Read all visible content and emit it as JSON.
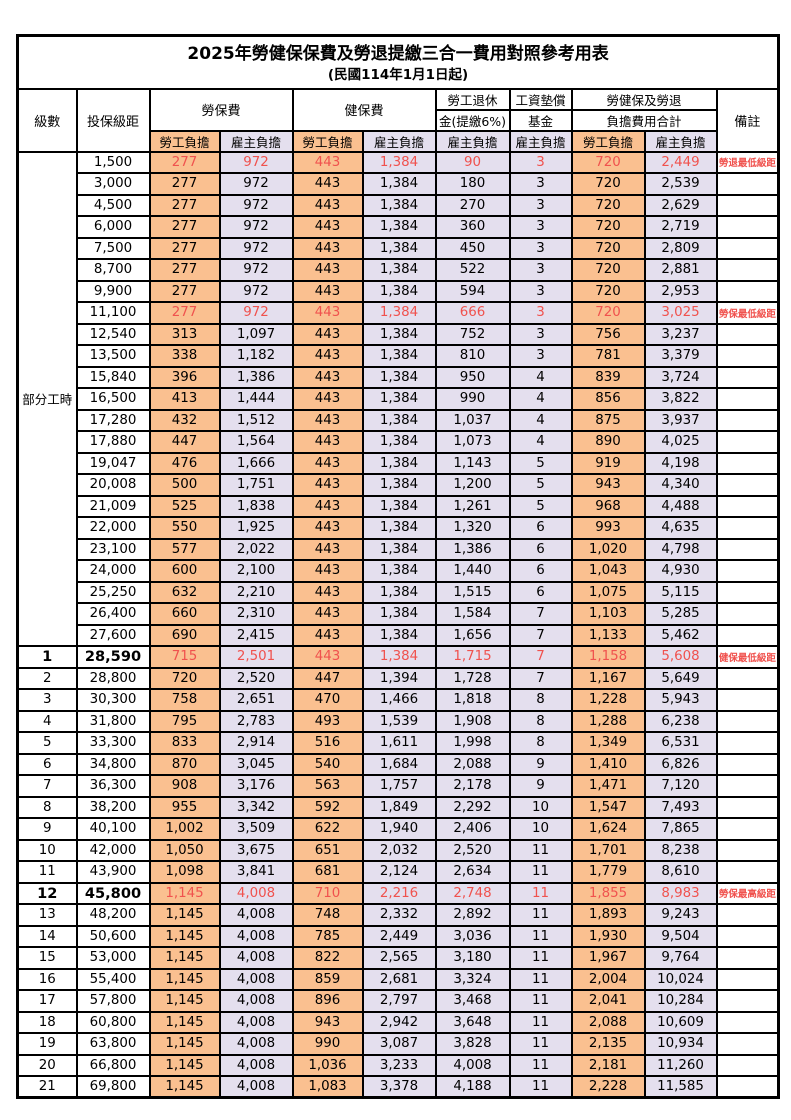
{
  "title": "2025年勞健保保費及勞退提繳三合一費用對照參考用表",
  "subtitle": "(民國114年1月1日起)",
  "header": {
    "level": "級數",
    "bracket": "投保級距",
    "labor_fee": "勞保費",
    "health_fee": "健保費",
    "pension_line1": "勞工退休",
    "pension_line2": "金(提繳6%)",
    "wage_fund_line1": "工資墊償",
    "wage_fund_line2": "基金",
    "total_line1": "勞健保及勞退",
    "total_line2": "負擔費用合計",
    "employee": "勞工負擔",
    "employer": "雇主負擔",
    "remark": "備註"
  },
  "part_time_label": "部分工時",
  "colors": {
    "employee_col_bg": "#fac090",
    "employer_col_bg": "#e4dfee",
    "highlight_text": "#f0524e",
    "grid": "#000000"
  },
  "rows": [
    {
      "level": "",
      "bracket": "1,500",
      "values": [
        "277",
        "972",
        "443",
        "1,384",
        "90",
        "3",
        "720",
        "2,449"
      ],
      "remark": "勞退最低級距",
      "red": true,
      "bold": false
    },
    {
      "level": "",
      "bracket": "3,000",
      "values": [
        "277",
        "972",
        "443",
        "1,384",
        "180",
        "3",
        "720",
        "2,539"
      ],
      "remark": "",
      "red": false,
      "bold": false
    },
    {
      "level": "",
      "bracket": "4,500",
      "values": [
        "277",
        "972",
        "443",
        "1,384",
        "270",
        "3",
        "720",
        "2,629"
      ],
      "remark": "",
      "red": false,
      "bold": false
    },
    {
      "level": "",
      "bracket": "6,000",
      "values": [
        "277",
        "972",
        "443",
        "1,384",
        "360",
        "3",
        "720",
        "2,719"
      ],
      "remark": "",
      "red": false,
      "bold": false
    },
    {
      "level": "",
      "bracket": "7,500",
      "values": [
        "277",
        "972",
        "443",
        "1,384",
        "450",
        "3",
        "720",
        "2,809"
      ],
      "remark": "",
      "red": false,
      "bold": false
    },
    {
      "level": "",
      "bracket": "8,700",
      "values": [
        "277",
        "972",
        "443",
        "1,384",
        "522",
        "3",
        "720",
        "2,881"
      ],
      "remark": "",
      "red": false,
      "bold": false
    },
    {
      "level": "",
      "bracket": "9,900",
      "values": [
        "277",
        "972",
        "443",
        "1,384",
        "594",
        "3",
        "720",
        "2,953"
      ],
      "remark": "",
      "red": false,
      "bold": false
    },
    {
      "level": "",
      "bracket": "11,100",
      "values": [
        "277",
        "972",
        "443",
        "1,384",
        "666",
        "3",
        "720",
        "3,025"
      ],
      "remark": "勞保最低級距",
      "red": true,
      "bold": false
    },
    {
      "level": "",
      "bracket": "12,540",
      "values": [
        "313",
        "1,097",
        "443",
        "1,384",
        "752",
        "3",
        "756",
        "3,237"
      ],
      "remark": "",
      "red": false,
      "bold": false
    },
    {
      "level": "",
      "bracket": "13,500",
      "values": [
        "338",
        "1,182",
        "443",
        "1,384",
        "810",
        "3",
        "781",
        "3,379"
      ],
      "remark": "",
      "red": false,
      "bold": false
    },
    {
      "level": "",
      "bracket": "15,840",
      "values": [
        "396",
        "1,386",
        "443",
        "1,384",
        "950",
        "4",
        "839",
        "3,724"
      ],
      "remark": "",
      "red": false,
      "bold": false
    },
    {
      "level": "",
      "bracket": "16,500",
      "values": [
        "413",
        "1,444",
        "443",
        "1,384",
        "990",
        "4",
        "856",
        "3,822"
      ],
      "remark": "",
      "red": false,
      "bold": false
    },
    {
      "level": "",
      "bracket": "17,280",
      "values": [
        "432",
        "1,512",
        "443",
        "1,384",
        "1,037",
        "4",
        "875",
        "3,937"
      ],
      "remark": "",
      "red": false,
      "bold": false
    },
    {
      "level": "",
      "bracket": "17,880",
      "values": [
        "447",
        "1,564",
        "443",
        "1,384",
        "1,073",
        "4",
        "890",
        "4,025"
      ],
      "remark": "",
      "red": false,
      "bold": false
    },
    {
      "level": "",
      "bracket": "19,047",
      "values": [
        "476",
        "1,666",
        "443",
        "1,384",
        "1,143",
        "5",
        "919",
        "4,198"
      ],
      "remark": "",
      "red": false,
      "bold": false
    },
    {
      "level": "",
      "bracket": "20,008",
      "values": [
        "500",
        "1,751",
        "443",
        "1,384",
        "1,200",
        "5",
        "943",
        "4,340"
      ],
      "remark": "",
      "red": false,
      "bold": false
    },
    {
      "level": "",
      "bracket": "21,009",
      "values": [
        "525",
        "1,838",
        "443",
        "1,384",
        "1,261",
        "5",
        "968",
        "4,488"
      ],
      "remark": "",
      "red": false,
      "bold": false
    },
    {
      "level": "",
      "bracket": "22,000",
      "values": [
        "550",
        "1,925",
        "443",
        "1,384",
        "1,320",
        "6",
        "993",
        "4,635"
      ],
      "remark": "",
      "red": false,
      "bold": false
    },
    {
      "level": "",
      "bracket": "23,100",
      "values": [
        "577",
        "2,022",
        "443",
        "1,384",
        "1,386",
        "6",
        "1,020",
        "4,798"
      ],
      "remark": "",
      "red": false,
      "bold": false
    },
    {
      "level": "",
      "bracket": "24,000",
      "values": [
        "600",
        "2,100",
        "443",
        "1,384",
        "1,440",
        "6",
        "1,043",
        "4,930"
      ],
      "remark": "",
      "red": false,
      "bold": false
    },
    {
      "level": "",
      "bracket": "25,250",
      "values": [
        "632",
        "2,210",
        "443",
        "1,384",
        "1,515",
        "6",
        "1,075",
        "5,115"
      ],
      "remark": "",
      "red": false,
      "bold": false
    },
    {
      "level": "",
      "bracket": "26,400",
      "values": [
        "660",
        "2,310",
        "443",
        "1,384",
        "1,584",
        "7",
        "1,103",
        "5,285"
      ],
      "remark": "",
      "red": false,
      "bold": false
    },
    {
      "level": "",
      "bracket": "27,600",
      "values": [
        "690",
        "2,415",
        "443",
        "1,384",
        "1,656",
        "7",
        "1,133",
        "5,462"
      ],
      "remark": "",
      "red": false,
      "bold": false
    },
    {
      "level": "1",
      "bracket": "28,590",
      "values": [
        "715",
        "2,501",
        "443",
        "1,384",
        "1,715",
        "7",
        "1,158",
        "5,608"
      ],
      "remark": "健保最低級距",
      "red": true,
      "bold": true
    },
    {
      "level": "2",
      "bracket": "28,800",
      "values": [
        "720",
        "2,520",
        "447",
        "1,394",
        "1,728",
        "7",
        "1,167",
        "5,649"
      ],
      "remark": "",
      "red": false,
      "bold": false
    },
    {
      "level": "3",
      "bracket": "30,300",
      "values": [
        "758",
        "2,651",
        "470",
        "1,466",
        "1,818",
        "8",
        "1,228",
        "5,943"
      ],
      "remark": "",
      "red": false,
      "bold": false
    },
    {
      "level": "4",
      "bracket": "31,800",
      "values": [
        "795",
        "2,783",
        "493",
        "1,539",
        "1,908",
        "8",
        "1,288",
        "6,238"
      ],
      "remark": "",
      "red": false,
      "bold": false
    },
    {
      "level": "5",
      "bracket": "33,300",
      "values": [
        "833",
        "2,914",
        "516",
        "1,611",
        "1,998",
        "8",
        "1,349",
        "6,531"
      ],
      "remark": "",
      "red": false,
      "bold": false
    },
    {
      "level": "6",
      "bracket": "34,800",
      "values": [
        "870",
        "3,045",
        "540",
        "1,684",
        "2,088",
        "9",
        "1,410",
        "6,826"
      ],
      "remark": "",
      "red": false,
      "bold": false
    },
    {
      "level": "7",
      "bracket": "36,300",
      "values": [
        "908",
        "3,176",
        "563",
        "1,757",
        "2,178",
        "9",
        "1,471",
        "7,120"
      ],
      "remark": "",
      "red": false,
      "bold": false
    },
    {
      "level": "8",
      "bracket": "38,200",
      "values": [
        "955",
        "3,342",
        "592",
        "1,849",
        "2,292",
        "10",
        "1,547",
        "7,493"
      ],
      "remark": "",
      "red": false,
      "bold": false
    },
    {
      "level": "9",
      "bracket": "40,100",
      "values": [
        "1,002",
        "3,509",
        "622",
        "1,940",
        "2,406",
        "10",
        "1,624",
        "7,865"
      ],
      "remark": "",
      "red": false,
      "bold": false
    },
    {
      "level": "10",
      "bracket": "42,000",
      "values": [
        "1,050",
        "3,675",
        "651",
        "2,032",
        "2,520",
        "11",
        "1,701",
        "8,238"
      ],
      "remark": "",
      "red": false,
      "bold": false
    },
    {
      "level": "11",
      "bracket": "43,900",
      "values": [
        "1,098",
        "3,841",
        "681",
        "2,124",
        "2,634",
        "11",
        "1,779",
        "8,610"
      ],
      "remark": "",
      "red": false,
      "bold": false
    },
    {
      "level": "12",
      "bracket": "45,800",
      "values": [
        "1,145",
        "4,008",
        "710",
        "2,216",
        "2,748",
        "11",
        "1,855",
        "8,983"
      ],
      "remark": "勞保最高級距",
      "red": true,
      "bold": true
    },
    {
      "level": "13",
      "bracket": "48,200",
      "values": [
        "1,145",
        "4,008",
        "748",
        "2,332",
        "2,892",
        "11",
        "1,893",
        "9,243"
      ],
      "remark": "",
      "red": false,
      "bold": false
    },
    {
      "level": "14",
      "bracket": "50,600",
      "values": [
        "1,145",
        "4,008",
        "785",
        "2,449",
        "3,036",
        "11",
        "1,930",
        "9,504"
      ],
      "remark": "",
      "red": false,
      "bold": false
    },
    {
      "level": "15",
      "bracket": "53,000",
      "values": [
        "1,145",
        "4,008",
        "822",
        "2,565",
        "3,180",
        "11",
        "1,967",
        "9,764"
      ],
      "remark": "",
      "red": false,
      "bold": false
    },
    {
      "level": "16",
      "bracket": "55,400",
      "values": [
        "1,145",
        "4,008",
        "859",
        "2,681",
        "3,324",
        "11",
        "2,004",
        "10,024"
      ],
      "remark": "",
      "red": false,
      "bold": false
    },
    {
      "level": "17",
      "bracket": "57,800",
      "values": [
        "1,145",
        "4,008",
        "896",
        "2,797",
        "3,468",
        "11",
        "2,041",
        "10,284"
      ],
      "remark": "",
      "red": false,
      "bold": false
    },
    {
      "level": "18",
      "bracket": "60,800",
      "values": [
        "1,145",
        "4,008",
        "943",
        "2,942",
        "3,648",
        "11",
        "2,088",
        "10,609"
      ],
      "remark": "",
      "red": false,
      "bold": false
    },
    {
      "level": "19",
      "bracket": "63,800",
      "values": [
        "1,145",
        "4,008",
        "990",
        "3,087",
        "3,828",
        "11",
        "2,135",
        "10,934"
      ],
      "remark": "",
      "red": false,
      "bold": false
    },
    {
      "level": "20",
      "bracket": "66,800",
      "values": [
        "1,145",
        "4,008",
        "1,036",
        "3,233",
        "4,008",
        "11",
        "2,181",
        "11,260"
      ],
      "remark": "",
      "red": false,
      "bold": false
    },
    {
      "level": "21",
      "bracket": "69,800",
      "values": [
        "1,145",
        "4,008",
        "1,083",
        "3,378",
        "4,188",
        "11",
        "2,228",
        "11,585"
      ],
      "remark": "",
      "red": false,
      "bold": false
    }
  ]
}
